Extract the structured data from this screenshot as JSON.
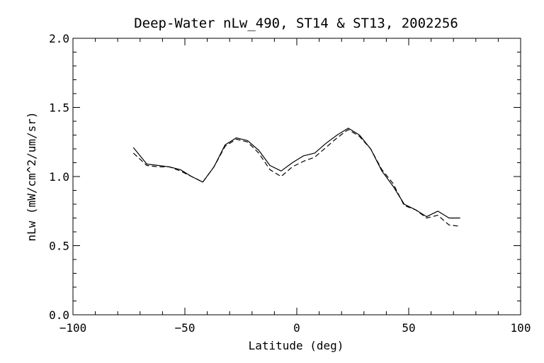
{
  "chart_data": {
    "type": "line",
    "title": "Deep-Water nLw_490, ST14 & ST13, 2002256",
    "xlabel": "Latitude (deg)",
    "ylabel": "nLw (mW/cm^2/um/sr)",
    "xlim": [
      -100,
      100
    ],
    "ylim": [
      0.0,
      2.0
    ],
    "xticks": [
      "−100",
      "−50",
      "0",
      "50",
      "100"
    ],
    "yticks": [
      "0.0",
      "0.5",
      "1.0",
      "1.5",
      "2.0"
    ],
    "grid": false,
    "series": [
      {
        "style": "solid",
        "x": [
          -73,
          -67,
          -62,
          -57,
          -52,
          -47,
          -42,
          -37,
          -32,
          -27,
          -22,
          -17,
          -12,
          -7,
          -2,
          3,
          8,
          13,
          18,
          23,
          28,
          33,
          38,
          43,
          48,
          53,
          58,
          63,
          68,
          73
        ],
        "y": [
          1.21,
          1.09,
          1.08,
          1.07,
          1.05,
          1.0,
          0.96,
          1.07,
          1.23,
          1.28,
          1.26,
          1.19,
          1.08,
          1.04,
          1.1,
          1.15,
          1.17,
          1.24,
          1.3,
          1.35,
          1.3,
          1.2,
          1.04,
          0.93,
          0.8,
          0.76,
          0.71,
          0.75,
          0.7,
          0.7
        ]
      },
      {
        "style": "dashed",
        "x": [
          -73,
          -67,
          -62,
          -57,
          -52,
          -47,
          -42,
          -37,
          -32,
          -27,
          -22,
          -17,
          -12,
          -7,
          -2,
          3,
          8,
          13,
          18,
          23,
          28,
          33,
          38,
          43,
          48,
          53,
          58,
          63,
          68,
          73
        ],
        "y": [
          1.17,
          1.08,
          1.07,
          1.07,
          1.04,
          1.0,
          0.96,
          1.07,
          1.22,
          1.27,
          1.25,
          1.17,
          1.05,
          1.0,
          1.07,
          1.11,
          1.14,
          1.21,
          1.28,
          1.34,
          1.29,
          1.2,
          1.05,
          0.95,
          0.79,
          0.76,
          0.7,
          0.72,
          0.65,
          0.64
        ]
      }
    ]
  }
}
